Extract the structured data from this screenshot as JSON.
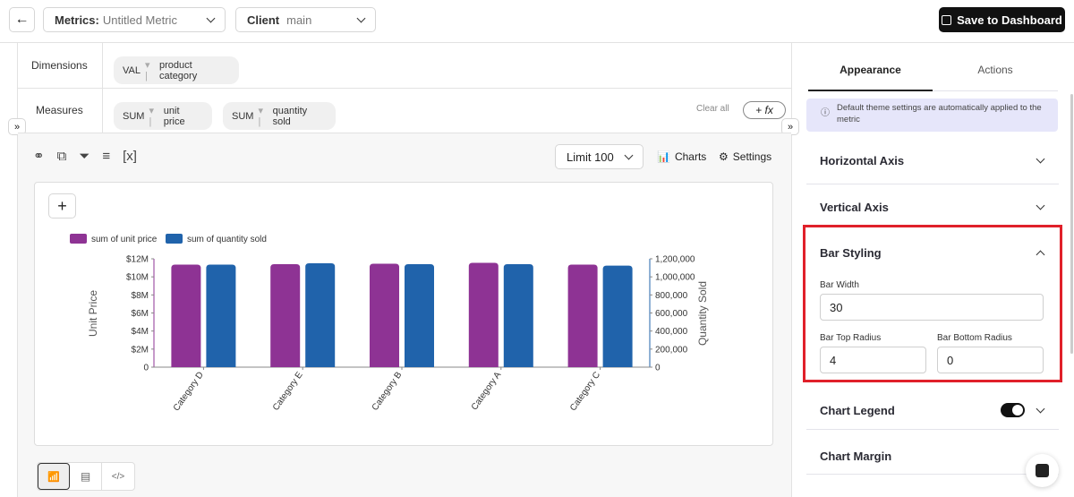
{
  "header": {
    "metrics_label": "Metrics:",
    "metrics_value": "Untitled Metric",
    "client_label": "Client",
    "client_value": "main",
    "save_label": "Save to Dashboard"
  },
  "query": {
    "dimensions_label": "Dimensions",
    "dimensions": [
      {
        "agg": "VAL",
        "field": "product category"
      }
    ],
    "measures_label": "Measures",
    "measures": [
      {
        "agg": "SUM",
        "field": "unit price"
      },
      {
        "agg": "SUM",
        "field": "quantity sold"
      }
    ],
    "clear_all": "Clear all",
    "formula_button": "+ fx"
  },
  "toolbar": {
    "variable_icon": "[x]",
    "limit_label": "Limit",
    "limit_value": "100",
    "charts_label": "Charts",
    "settings_label": "Settings"
  },
  "chart_data": {
    "type": "bar",
    "categories": [
      "Category D",
      "Category E",
      "Category B",
      "Category A",
      "Category C"
    ],
    "series": [
      {
        "name": "sum of unit price",
        "axis": "left",
        "color": "#8e3394",
        "values": [
          11360000,
          11400000,
          11450000,
          11550000,
          11360000
        ]
      },
      {
        "name": "sum of quantity sold",
        "axis": "right",
        "color": "#2063ab",
        "values": [
          1136000,
          1150000,
          1140000,
          1140000,
          1125000
        ]
      }
    ],
    "ylabel": "Unit Price",
    "y2label": "Quantity Sold",
    "ylim": [
      0,
      12000000
    ],
    "y2lim": [
      0,
      1200000
    ],
    "yticks": [
      "0",
      "$2M",
      "$4M",
      "$6M",
      "$8M",
      "$10M",
      "$12M"
    ],
    "y2ticks": [
      "0",
      "200,000",
      "400,000",
      "600,000",
      "800,000",
      "1,000,000",
      "1,200,000"
    ],
    "legend": "top-left"
  },
  "panel": {
    "tabs": [
      "Appearance",
      "Actions"
    ],
    "info": "Default theme settings are automatically applied to the metric",
    "sections": {
      "horizontal_axis": "Horizontal Axis",
      "vertical_axis": "Vertical Axis",
      "bar_styling": "Bar Styling",
      "chart_legend": "Chart Legend",
      "chart_margin": "Chart Margin"
    },
    "bar_width_label": "Bar Width",
    "bar_width": "30",
    "bar_top_radius_label": "Bar Top Radius",
    "bar_top_radius": "4",
    "bar_bottom_radius_label": "Bar Bottom Radius",
    "bar_bottom_radius": "0",
    "chart_legend_enabled": true
  }
}
